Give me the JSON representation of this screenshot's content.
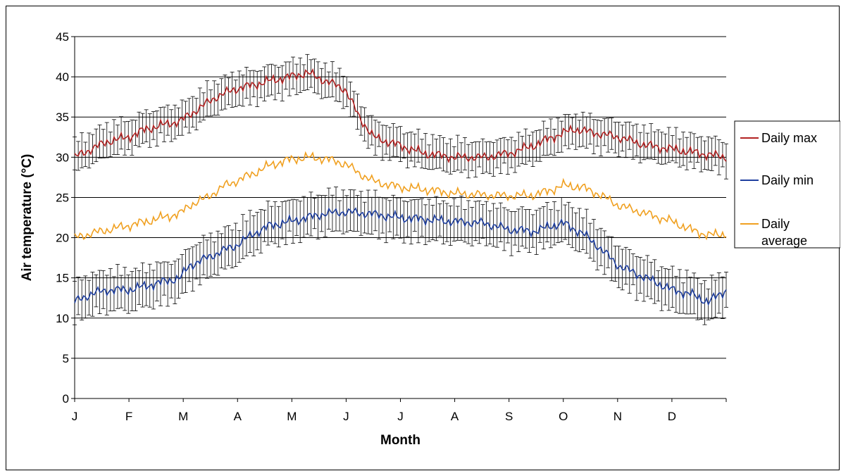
{
  "chart_data": {
    "type": "line",
    "title": "",
    "xlabel": "Month",
    "ylabel": "Air temperature (°C)",
    "ylim": [
      0,
      45
    ],
    "yticks": [
      0,
      5,
      10,
      15,
      20,
      25,
      30,
      35,
      40,
      45
    ],
    "categories": [
      "J",
      "F",
      "M",
      "A",
      "M",
      "J",
      "J",
      "A",
      "S",
      "O",
      "N",
      "D"
    ],
    "grid": "horizontal",
    "legend_position": "right",
    "error_bars": true,
    "series": [
      {
        "name": "Daily max",
        "color": "#b22222",
        "error_bars": true,
        "values": [
          [
            1,
            30.0
          ],
          [
            10,
            31.0
          ],
          [
            20,
            32.0
          ],
          [
            31,
            32.5
          ],
          [
            41,
            33.5
          ],
          [
            50,
            34.0
          ],
          [
            60,
            34.5
          ],
          [
            70,
            36.0
          ],
          [
            80,
            37.5
          ],
          [
            91,
            38.5
          ],
          [
            101,
            39.0
          ],
          [
            110,
            39.5
          ],
          [
            121,
            40.0
          ],
          [
            131,
            40.5
          ],
          [
            141,
            39.5
          ],
          [
            152,
            38.5
          ],
          [
            160,
            35.0
          ],
          [
            168,
            32.5
          ],
          [
            182,
            31.5
          ],
          [
            196,
            30.5
          ],
          [
            213,
            30.0
          ],
          [
            230,
            30.0
          ],
          [
            244,
            30.5
          ],
          [
            258,
            31.5
          ],
          [
            268,
            32.5
          ],
          [
            274,
            33.0
          ],
          [
            280,
            33.5
          ],
          [
            292,
            33.0
          ],
          [
            305,
            32.5
          ],
          [
            320,
            31.5
          ],
          [
            335,
            31.0
          ],
          [
            350,
            30.5
          ],
          [
            365,
            30.0
          ]
        ],
        "error": 2.0
      },
      {
        "name": "Daily min",
        "color": "#1f3f9f",
        "error_bars": true,
        "values": [
          [
            1,
            12.0
          ],
          [
            10,
            13.0
          ],
          [
            20,
            13.5
          ],
          [
            31,
            13.5
          ],
          [
            41,
            14.0
          ],
          [
            50,
            14.5
          ],
          [
            60,
            15.0
          ],
          [
            65,
            16.5
          ],
          [
            75,
            17.5
          ],
          [
            85,
            18.5
          ],
          [
            91,
            19.0
          ],
          [
            101,
            20.5
          ],
          [
            110,
            21.5
          ],
          [
            121,
            22.0
          ],
          [
            131,
            22.5
          ],
          [
            141,
            23.0
          ],
          [
            152,
            23.2
          ],
          [
            165,
            23.0
          ],
          [
            182,
            22.5
          ],
          [
            196,
            22.3
          ],
          [
            213,
            22.0
          ],
          [
            230,
            21.8
          ],
          [
            244,
            21.0
          ],
          [
            258,
            20.8
          ],
          [
            268,
            21.5
          ],
          [
            274,
            21.8
          ],
          [
            285,
            20.5
          ],
          [
            293,
            19.0
          ],
          [
            305,
            16.5
          ],
          [
            320,
            15.0
          ],
          [
            335,
            13.5
          ],
          [
            345,
            13.0
          ],
          [
            355,
            12.0
          ],
          [
            365,
            13.5
          ]
        ],
        "error": 2.5
      },
      {
        "name": "Daily average",
        "color": "#f0a020",
        "error_bars": false,
        "values": [
          [
            1,
            20.0
          ],
          [
            10,
            20.5
          ],
          [
            20,
            21.0
          ],
          [
            31,
            21.5
          ],
          [
            41,
            22.0
          ],
          [
            50,
            22.5
          ],
          [
            60,
            23.0
          ],
          [
            65,
            24.0
          ],
          [
            75,
            25.0
          ],
          [
            85,
            26.5
          ],
          [
            91,
            27.0
          ],
          [
            101,
            28.0
          ],
          [
            110,
            29.0
          ],
          [
            121,
            29.7
          ],
          [
            131,
            30.0
          ],
          [
            141,
            29.8
          ],
          [
            152,
            29.2
          ],
          [
            160,
            28.0
          ],
          [
            168,
            27.0
          ],
          [
            182,
            26.3
          ],
          [
            196,
            26.0
          ],
          [
            213,
            25.5
          ],
          [
            230,
            25.3
          ],
          [
            244,
            25.2
          ],
          [
            258,
            25.3
          ],
          [
            268,
            26.0
          ],
          [
            274,
            26.5
          ],
          [
            284,
            26.3
          ],
          [
            293,
            25.5
          ],
          [
            305,
            24.0
          ],
          [
            320,
            23.0
          ],
          [
            335,
            22.0
          ],
          [
            345,
            21.0
          ],
          [
            355,
            20.3
          ],
          [
            365,
            20.5
          ]
        ]
      }
    ],
    "legend": [
      {
        "label": "Daily max",
        "color": "#b22222"
      },
      {
        "label": "Daily min",
        "color": "#1f3f9f"
      },
      {
        "label": "Daily",
        "label2": "average",
        "color": "#f0a020"
      }
    ]
  }
}
